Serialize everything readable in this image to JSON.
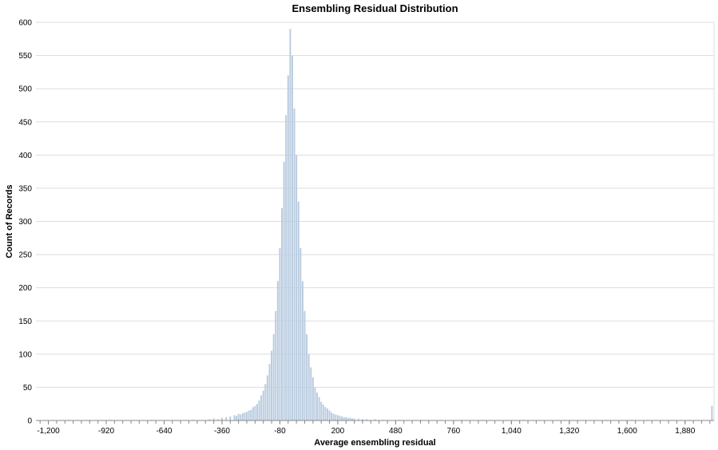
{
  "chart_data": {
    "type": "bar",
    "title": "Ensembling Residual Distribution",
    "xlabel": "Average ensembling residual",
    "ylabel": "Count of Records",
    "xlim": [
      -1260,
      2020
    ],
    "ylim": [
      0,
      600
    ],
    "bin_width": 10,
    "grid": true,
    "colors": {
      "bar": "#b9cce0",
      "grid": "#dddddd",
      "axis": "#888888",
      "text": "#000000"
    },
    "x_ticks": [
      {
        "value": -1200,
        "label": "-1,200"
      },
      {
        "value": -920,
        "label": "-920"
      },
      {
        "value": -640,
        "label": "-640"
      },
      {
        "value": -360,
        "label": "-360"
      },
      {
        "value": -80,
        "label": "-80"
      },
      {
        "value": 200,
        "label": "200"
      },
      {
        "value": 480,
        "label": "480"
      },
      {
        "value": 760,
        "label": "760"
      },
      {
        "value": 1040,
        "label": "1,040"
      },
      {
        "value": 1320,
        "label": "1,320"
      },
      {
        "value": 1600,
        "label": "1,600"
      },
      {
        "value": 1880,
        "label": "1,880"
      }
    ],
    "y_ticks": [
      {
        "value": 0,
        "label": "0"
      },
      {
        "value": 50,
        "label": "50"
      },
      {
        "value": 100,
        "label": "100"
      },
      {
        "value": 150,
        "label": "150"
      },
      {
        "value": 200,
        "label": "200"
      },
      {
        "value": 250,
        "label": "250"
      },
      {
        "value": 300,
        "label": "300"
      },
      {
        "value": 350,
        "label": "350"
      },
      {
        "value": 400,
        "label": "400"
      },
      {
        "value": 450,
        "label": "450"
      },
      {
        "value": 500,
        "label": "500"
      },
      {
        "value": 550,
        "label": "550"
      },
      {
        "value": 600,
        "label": "600"
      }
    ],
    "series": [
      {
        "x": [
          -1100,
          -900,
          -700,
          -500,
          -420,
          -400,
          -380,
          -360,
          -340,
          -320,
          -300,
          -290,
          -280,
          -270,
          -260,
          -250,
          -240,
          -230,
          -220,
          -210,
          -200,
          -190,
          -180,
          -170,
          -160,
          -150,
          -140,
          -130,
          -120,
          -110,
          -100,
          -90,
          -80,
          -70,
          -60,
          -50,
          -40,
          -30,
          -20,
          -10,
          0,
          10,
          20,
          30,
          40,
          50,
          60,
          70,
          80,
          90,
          100,
          110,
          120,
          130,
          140,
          150,
          160,
          170,
          180,
          190,
          200,
          210,
          220,
          230,
          240,
          250,
          260,
          270,
          280,
          300,
          320,
          340,
          380,
          420,
          500,
          600,
          700,
          800,
          900,
          1100,
          1300,
          1500,
          1700,
          1900,
          2010
        ],
        "values": [
          1,
          1,
          1,
          1,
          2,
          3,
          2,
          4,
          5,
          6,
          8,
          7,
          10,
          9,
          11,
          12,
          13,
          15,
          16,
          20,
          22,
          25,
          30,
          38,
          45,
          55,
          68,
          85,
          105,
          130,
          165,
          210,
          260,
          320,
          390,
          460,
          520,
          590,
          550,
          470,
          400,
          330,
          260,
          210,
          165,
          130,
          100,
          80,
          65,
          50,
          42,
          35,
          28,
          24,
          20,
          18,
          15,
          12,
          10,
          9,
          8,
          7,
          6,
          5,
          5,
          4,
          4,
          3,
          3,
          3,
          2,
          2,
          2,
          1,
          1,
          1,
          1,
          1,
          1,
          1,
          1,
          1,
          1,
          1,
          22
        ]
      }
    ]
  }
}
